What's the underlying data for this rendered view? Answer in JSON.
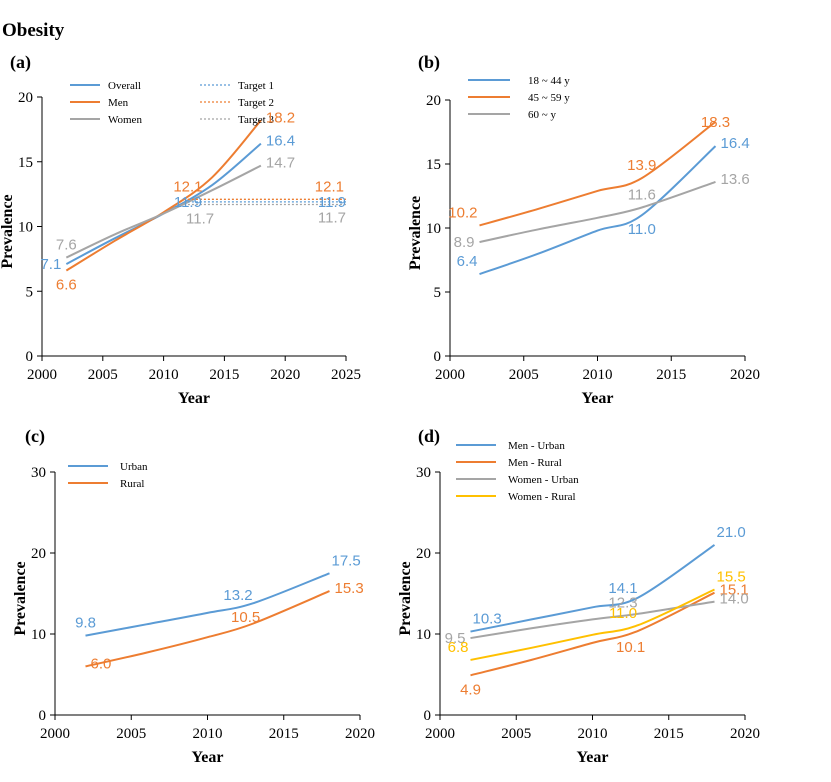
{
  "title": "Obesity",
  "colors": {
    "blue": "#5B9BD5",
    "orange": "#ED7D31",
    "gray": "#A5A5A5",
    "yellow": "#FFC000"
  },
  "chart_data": [
    {
      "id": "a",
      "panel_label": "(a)",
      "type": "line",
      "xlabel": "Year",
      "ylabel": "Prevalence",
      "xlim": [
        2000,
        2025
      ],
      "ylim": [
        0,
        20
      ],
      "xticks": [
        "2000",
        "2005",
        "2010",
        "2015",
        "2020",
        "2025"
      ],
      "yticks": [
        "0",
        "5",
        "10",
        "15",
        "20"
      ],
      "legend_position": "top",
      "series": [
        {
          "name": "Overall",
          "color": "blue",
          "x": [
            2002,
            2006,
            2010,
            2014,
            2018
          ],
          "y": [
            7.1,
            9.1,
            11.0,
            13.2,
            16.4
          ]
        },
        {
          "name": "Men",
          "color": "orange",
          "x": [
            2002,
            2006,
            2010,
            2014,
            2018
          ],
          "y": [
            6.6,
            8.9,
            11.1,
            13.8,
            18.2
          ]
        },
        {
          "name": "Women",
          "color": "gray",
          "x": [
            2002,
            2006,
            2010,
            2014,
            2018
          ],
          "y": [
            7.6,
            9.4,
            11.0,
            12.8,
            14.7
          ]
        },
        {
          "name": "Target 1",
          "color": "blue",
          "dashed": true,
          "x": [
            2012,
            2025
          ],
          "y": [
            11.9,
            11.9
          ]
        },
        {
          "name": "Target 2",
          "color": "orange",
          "dashed": true,
          "x": [
            2012,
            2025
          ],
          "y": [
            12.1,
            12.1
          ]
        },
        {
          "name": "Target 3",
          "color": "gray",
          "dashed": true,
          "x": [
            2012,
            2025
          ],
          "y": [
            11.7,
            11.7
          ]
        }
      ],
      "labels": [
        {
          "text": "7.1",
          "color": "blue",
          "x": 2002,
          "y": 7.1,
          "pos": "left"
        },
        {
          "text": "6.6",
          "color": "orange",
          "x": 2002,
          "y": 6.6,
          "pos": "below"
        },
        {
          "text": "7.6",
          "color": "gray",
          "x": 2002,
          "y": 7.6,
          "pos": "above"
        },
        {
          "text": "12.1",
          "color": "orange",
          "x": 2012,
          "y": 12.1,
          "pos": "above"
        },
        {
          "text": "11.9",
          "color": "blue",
          "x": 2012,
          "y": 11.9,
          "pos": "center"
        },
        {
          "text": "11.7",
          "color": "gray",
          "x": 2013,
          "y": 11.7,
          "pos": "below"
        },
        {
          "text": "18.2",
          "color": "orange",
          "x": 2018,
          "y": 18.2,
          "pos": "right"
        },
        {
          "text": "16.4",
          "color": "blue",
          "x": 2018,
          "y": 16.4,
          "pos": "right"
        },
        {
          "text": "14.7",
          "color": "gray",
          "x": 2018,
          "y": 14.7,
          "pos": "right"
        },
        {
          "text": "12.1",
          "color": "orange",
          "x": 2025,
          "y": 12.1,
          "pos": "aboveleft"
        },
        {
          "text": "11.9",
          "color": "blue",
          "x": 2025,
          "y": 11.9,
          "pos": "leftmid"
        },
        {
          "text": "11.7",
          "color": "gray",
          "x": 2025,
          "y": 11.7,
          "pos": "belowleft"
        }
      ]
    },
    {
      "id": "b",
      "panel_label": "(b)",
      "type": "line",
      "xlabel": "Year",
      "ylabel": "Prevalence",
      "xlim": [
        2000,
        2020
      ],
      "ylim": [
        0,
        20
      ],
      "xticks": [
        "2000",
        "2005",
        "2010",
        "2015",
        "2020"
      ],
      "yticks": [
        "0",
        "5",
        "10",
        "15",
        "20"
      ],
      "legend_position": "top-left",
      "series": [
        {
          "name": "18 ~ 44 y",
          "color": "blue",
          "x": [
            2002,
            2006,
            2010,
            2013,
            2018
          ],
          "y": [
            6.4,
            8.0,
            9.8,
            11.0,
            16.4
          ]
        },
        {
          "name": "45 ~ 59 y",
          "color": "orange",
          "x": [
            2002,
            2006,
            2010,
            2013,
            2018
          ],
          "y": [
            10.2,
            11.5,
            12.9,
            13.9,
            18.3
          ]
        },
        {
          "name": "60 ~ y",
          "color": "gray",
          "x": [
            2002,
            2006,
            2010,
            2013,
            2018
          ],
          "y": [
            8.9,
            9.9,
            10.8,
            11.6,
            13.6
          ]
        }
      ],
      "labels": [
        {
          "text": "10.2",
          "color": "orange",
          "x": 2002,
          "y": 10.2,
          "pos": "aboveleft"
        },
        {
          "text": "8.9",
          "color": "gray",
          "x": 2002,
          "y": 8.9,
          "pos": "left"
        },
        {
          "text": "6.4",
          "color": "blue",
          "x": 2002,
          "y": 6.4,
          "pos": "aboveleft"
        },
        {
          "text": "13.9",
          "color": "orange",
          "x": 2013,
          "y": 13.9,
          "pos": "above"
        },
        {
          "text": "11.6",
          "color": "gray",
          "x": 2013,
          "y": 11.6,
          "pos": "above"
        },
        {
          "text": "11.0",
          "color": "blue",
          "x": 2013,
          "y": 11.0,
          "pos": "below"
        },
        {
          "text": "18.3",
          "color": "orange",
          "x": 2018,
          "y": 18.3,
          "pos": "center"
        },
        {
          "text": "16.4",
          "color": "blue",
          "x": 2018,
          "y": 16.4,
          "pos": "right"
        },
        {
          "text": "13.6",
          "color": "gray",
          "x": 2018,
          "y": 13.6,
          "pos": "right"
        }
      ]
    },
    {
      "id": "c",
      "panel_label": "(c)",
      "type": "line",
      "xlabel": "Year",
      "ylabel": "Prevalence",
      "xlim": [
        2000,
        2020
      ],
      "ylim": [
        0,
        30
      ],
      "xticks": [
        "2000",
        "2005",
        "2010",
        "2015",
        "2020"
      ],
      "yticks": [
        "0",
        "10",
        "20",
        "30"
      ],
      "legend_position": "top-left",
      "series": [
        {
          "name": "Urban",
          "color": "blue",
          "x": [
            2002,
            2006,
            2010,
            2013,
            2018
          ],
          "y": [
            9.8,
            11.2,
            12.6,
            13.8,
            17.5
          ]
        },
        {
          "name": "Rural",
          "color": "orange",
          "x": [
            2002,
            2006,
            2010,
            2013,
            2018
          ],
          "y": [
            6.0,
            7.7,
            9.6,
            11.3,
            15.3
          ]
        }
      ],
      "labels": [
        {
          "text": "9.8",
          "color": "blue",
          "x": 2002,
          "y": 9.8,
          "pos": "above"
        },
        {
          "text": "6.0",
          "color": "orange",
          "x": 2002,
          "y": 6.0,
          "pos": "right"
        },
        {
          "text": "13.2",
          "color": "blue",
          "x": 2012,
          "y": 13.2,
          "pos": "above"
        },
        {
          "text": "10.5",
          "color": "orange",
          "x": 2012.5,
          "y": 10.5,
          "pos": "above"
        },
        {
          "text": "17.5",
          "color": "blue",
          "x": 2018,
          "y": 17.5,
          "pos": "aboveright"
        },
        {
          "text": "15.3",
          "color": "orange",
          "x": 2018,
          "y": 15.3,
          "pos": "right"
        }
      ]
    },
    {
      "id": "d",
      "panel_label": "(d)",
      "type": "line",
      "xlabel": "Year",
      "ylabel": "Prevalence",
      "xlim": [
        2000,
        2020
      ],
      "ylim": [
        0,
        30
      ],
      "xticks": [
        "2000",
        "2005",
        "2010",
        "2015",
        "2020"
      ],
      "yticks": [
        "0",
        "10",
        "20",
        "30"
      ],
      "legend_position": "top-left",
      "series": [
        {
          "name": "Men - Urban",
          "color": "blue",
          "x": [
            2002,
            2006,
            2010,
            2013,
            2018
          ],
          "y": [
            10.3,
            11.8,
            13.3,
            14.5,
            21.0
          ]
        },
        {
          "name": "Men - Rural",
          "color": "orange",
          "x": [
            2002,
            2006,
            2010,
            2013,
            2018
          ],
          "y": [
            4.9,
            6.8,
            8.9,
            10.4,
            15.1
          ]
        },
        {
          "name": "Women - Urban",
          "color": "gray",
          "x": [
            2002,
            2006,
            2010,
            2013,
            2018
          ],
          "y": [
            9.5,
            10.7,
            11.8,
            12.5,
            14.0
          ]
        },
        {
          "name": "Women - Rural",
          "color": "yellow",
          "x": [
            2002,
            2006,
            2010,
            2013,
            2018
          ],
          "y": [
            6.8,
            8.3,
            9.9,
            11.1,
            15.5
          ]
        }
      ],
      "labels": [
        {
          "text": "10.3",
          "color": "blue",
          "x": 2002,
          "y": 10.3,
          "pos": "aboveright"
        },
        {
          "text": "9.5",
          "color": "gray",
          "x": 2002,
          "y": 9.5,
          "pos": "left"
        },
        {
          "text": "6.8",
          "color": "yellow",
          "x": 2002,
          "y": 6.8,
          "pos": "aboveleft"
        },
        {
          "text": "4.9",
          "color": "orange",
          "x": 2002,
          "y": 4.9,
          "pos": "below"
        },
        {
          "text": "14.1",
          "color": "blue",
          "x": 2012,
          "y": 14.1,
          "pos": "above"
        },
        {
          "text": "12.3",
          "color": "gray",
          "x": 2012,
          "y": 12.3,
          "pos": "above"
        },
        {
          "text": "11.0",
          "color": "yellow",
          "x": 2012,
          "y": 11.0,
          "pos": "above"
        },
        {
          "text": "10.1",
          "color": "orange",
          "x": 2012.5,
          "y": 10.1,
          "pos": "below"
        },
        {
          "text": "21.0",
          "color": "blue",
          "x": 2018,
          "y": 21.0,
          "pos": "aboveright"
        },
        {
          "text": "15.5",
          "color": "yellow",
          "x": 2018,
          "y": 15.5,
          "pos": "aboveright"
        },
        {
          "text": "15.1",
          "color": "orange",
          "x": 2018,
          "y": 15.1,
          "pos": "right"
        },
        {
          "text": "14.0",
          "color": "gray",
          "x": 2018,
          "y": 14.0,
          "pos": "right"
        }
      ]
    }
  ]
}
